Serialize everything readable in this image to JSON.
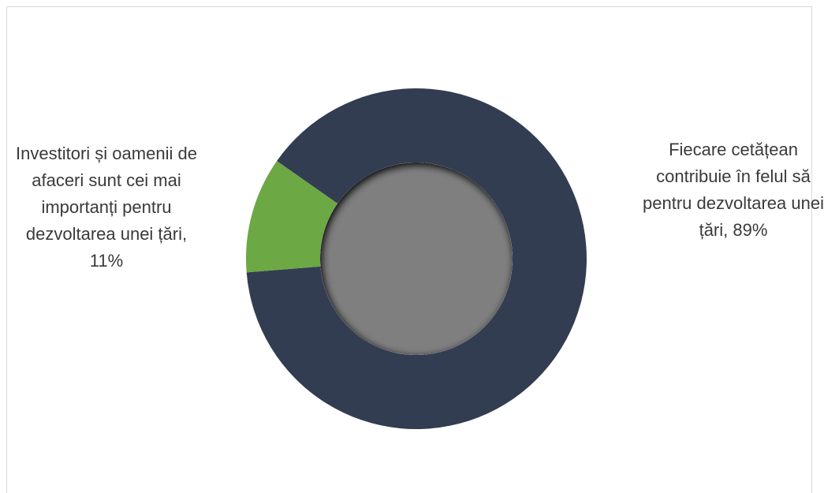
{
  "chart_data": {
    "type": "donut",
    "values": [
      89,
      11
    ],
    "value_labels": [
      "Fiecare cetățean contribuie în felul să pentru dezvoltarea unei țări, 89%",
      "Investitori și oamenii de afaceri sunt cei mai importanți pentru dezvoltarea unei țări, 11%"
    ],
    "colors": [
      "#333d51",
      "#6ca844"
    ]
  }
}
